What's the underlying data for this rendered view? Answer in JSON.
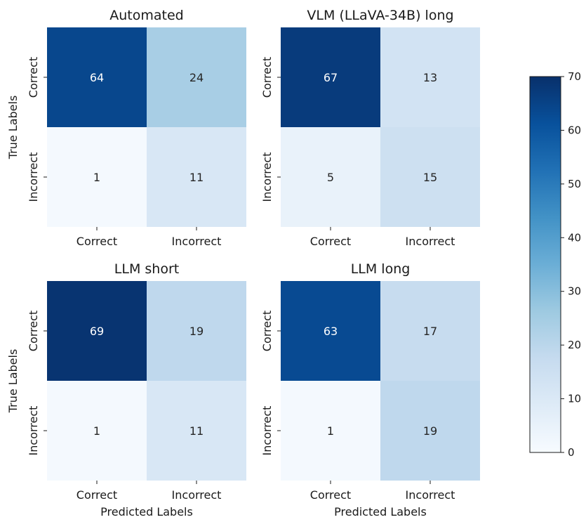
{
  "chart_data": {
    "type": "heatmap",
    "row_labels": [
      "Correct",
      "Incorrect"
    ],
    "col_labels": [
      "Correct",
      "Incorrect"
    ],
    "ylabel": "True Labels",
    "xlabel": "Predicted Labels",
    "colormap": "Blues",
    "vmin": 0,
    "vmax": 70,
    "colorbar_ticks": [
      0,
      10,
      20,
      30,
      40,
      50,
      60,
      70
    ],
    "panels": [
      {
        "title": "Automated",
        "values": [
          [
            64,
            24
          ],
          [
            1,
            11
          ]
        ]
      },
      {
        "title": "VLM (LLaVA-34B) long",
        "values": [
          [
            67,
            13
          ],
          [
            5,
            15
          ]
        ]
      },
      {
        "title": "LLM short",
        "values": [
          [
            69,
            19
          ],
          [
            1,
            11
          ]
        ]
      },
      {
        "title": "LLM long",
        "values": [
          [
            63,
            17
          ],
          [
            1,
            19
          ]
        ]
      }
    ]
  }
}
